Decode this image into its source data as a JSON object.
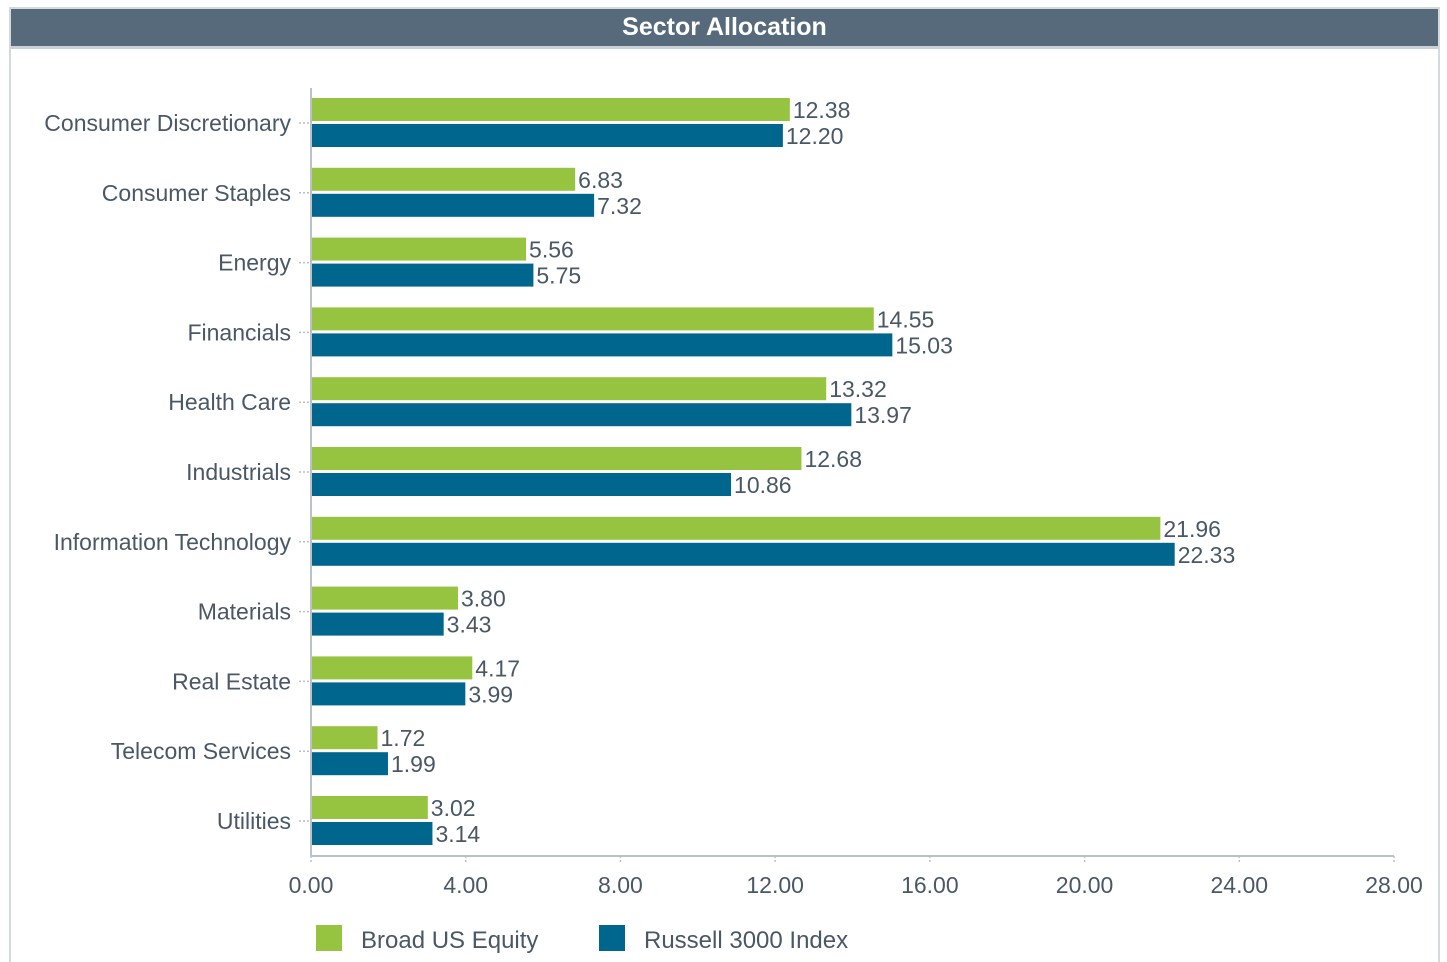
{
  "chart_data": {
    "type": "bar",
    "orientation": "horizontal",
    "title": "Sector Allocation",
    "categories": [
      "Consumer Discretionary",
      "Consumer Staples",
      "Energy",
      "Financials",
      "Health Care",
      "Industrials",
      "Information Technology",
      "Materials",
      "Real Estate",
      "Telecom Services",
      "Utilities"
    ],
    "series": [
      {
        "name": "Broad US Equity",
        "color": "#97c440",
        "values": [
          12.38,
          6.83,
          5.56,
          14.55,
          13.32,
          12.68,
          21.96,
          3.8,
          4.17,
          1.72,
          3.02
        ]
      },
      {
        "name": "Russell 3000 Index",
        "color": "#01668e",
        "values": [
          12.2,
          7.32,
          5.75,
          15.03,
          13.97,
          10.86,
          22.33,
          3.43,
          3.99,
          1.99,
          3.14
        ]
      }
    ],
    "xlim": [
      0,
      28
    ],
    "xticks": [
      0,
      4,
      8,
      12,
      16,
      20,
      24,
      28
    ],
    "xtick_labels": [
      "0.00",
      "4.00",
      "8.00",
      "12.00",
      "16.00",
      "20.00",
      "24.00",
      "28.00"
    ],
    "value_labels": [
      [
        "12.38",
        "6.83",
        "5.56",
        "14.55",
        "13.32",
        "12.68",
        "21.96",
        "3.80",
        "4.17",
        "1.72",
        "3.02"
      ],
      [
        "12.20",
        "7.32",
        "5.75",
        "15.03",
        "13.97",
        "10.86",
        "22.33",
        "3.43",
        "3.99",
        "1.99",
        "3.14"
      ]
    ],
    "legend_position": "bottom-left",
    "grid": false
  }
}
